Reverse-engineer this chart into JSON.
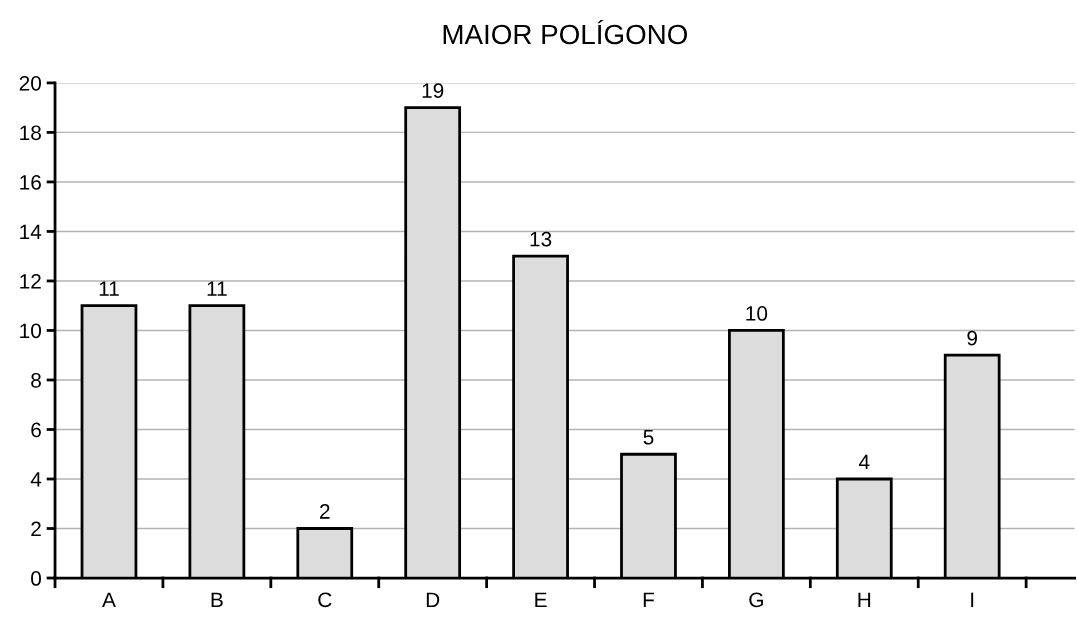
{
  "chart_data": {
    "type": "bar",
    "title": "MAIOR POLÍGONO",
    "categories": [
      "A",
      "B",
      "C",
      "D",
      "E",
      "F",
      "G",
      "H",
      "I"
    ],
    "values": [
      11,
      11,
      2,
      19,
      13,
      5,
      10,
      4,
      9
    ],
    "color": "#dcdcdc",
    "ylim": [
      0,
      20
    ],
    "yticks": [
      0,
      2,
      4,
      6,
      8,
      10,
      12,
      14,
      16,
      18,
      20
    ],
    "grid": "y",
    "data_labels": true,
    "legend": false
  }
}
